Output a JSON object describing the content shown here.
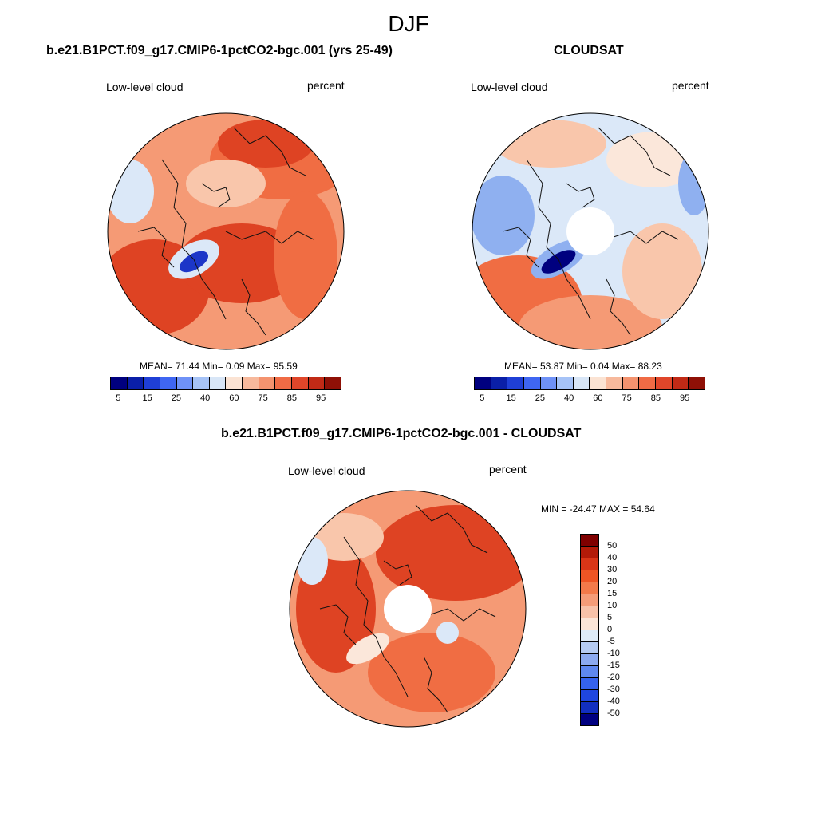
{
  "page_title": "DJF",
  "panels": [
    {
      "title": "b.e21.B1PCT.f09_g17.CMIP6-1pctCO2-bgc.001 (yrs 25-49)",
      "left_label": "Low-level cloud",
      "right_label": "percent",
      "stats": "MEAN=  71.44  Min=   0.09  Max=  95.59",
      "hole": false
    },
    {
      "title": "CLOUDSAT",
      "left_label": "Low-level cloud",
      "right_label": "percent",
      "stats": "MEAN=  53.87  Min=   0.04  Max=  88.23",
      "hole": true
    },
    {
      "title": "b.e21.B1PCT.f09_g17.CMIP6-1pctCO2-bgc.001 - CLOUDSAT",
      "left_label": "Low-level cloud",
      "right_label": "percent",
      "stats": "MIN = -24.47 MAX =  54.64",
      "hole": true
    }
  ],
  "abs_colorbar": {
    "colors": [
      "#00007f",
      "#0a1fa8",
      "#1f3fd6",
      "#3f66f2",
      "#6f92f7",
      "#a6c3f7",
      "#d8e6f7",
      "#fbe3d3",
      "#f7b99c",
      "#f4936f",
      "#f06b45",
      "#e0462a",
      "#c12a16",
      "#8f1006"
    ],
    "tick_labels": [
      "5",
      "15",
      "25",
      "40",
      "60",
      "75",
      "85",
      "95"
    ]
  },
  "diff_colorbar": {
    "colors": [
      "#7f0000",
      "#b31a08",
      "#d93517",
      "#ee5524",
      "#f37a4a",
      "#f59c78",
      "#f8c2a9",
      "#fbe5d7",
      "#deebf7",
      "#b5cbf2",
      "#8caaf0",
      "#5f88ef",
      "#3562ee",
      "#1f46df",
      "#122fc0",
      "#000080"
    ],
    "tick_labels": [
      "50",
      "40",
      "30",
      "20",
      "15",
      "10",
      "5",
      "0",
      "-5",
      "-10",
      "-15",
      "-20",
      "-30",
      "-40",
      "-50"
    ]
  },
  "map_colors": {
    "deep_red": "#b3240f",
    "red": "#de4323",
    "orange": "#f06d43",
    "salmon": "#f59a75",
    "peach": "#f9c6ab",
    "cream": "#fbe7da",
    "light_blue": "#dbe8f8",
    "blue": "#8fb0f0",
    "dark_blue": "#1c36c8",
    "navy": "#00007f"
  }
}
